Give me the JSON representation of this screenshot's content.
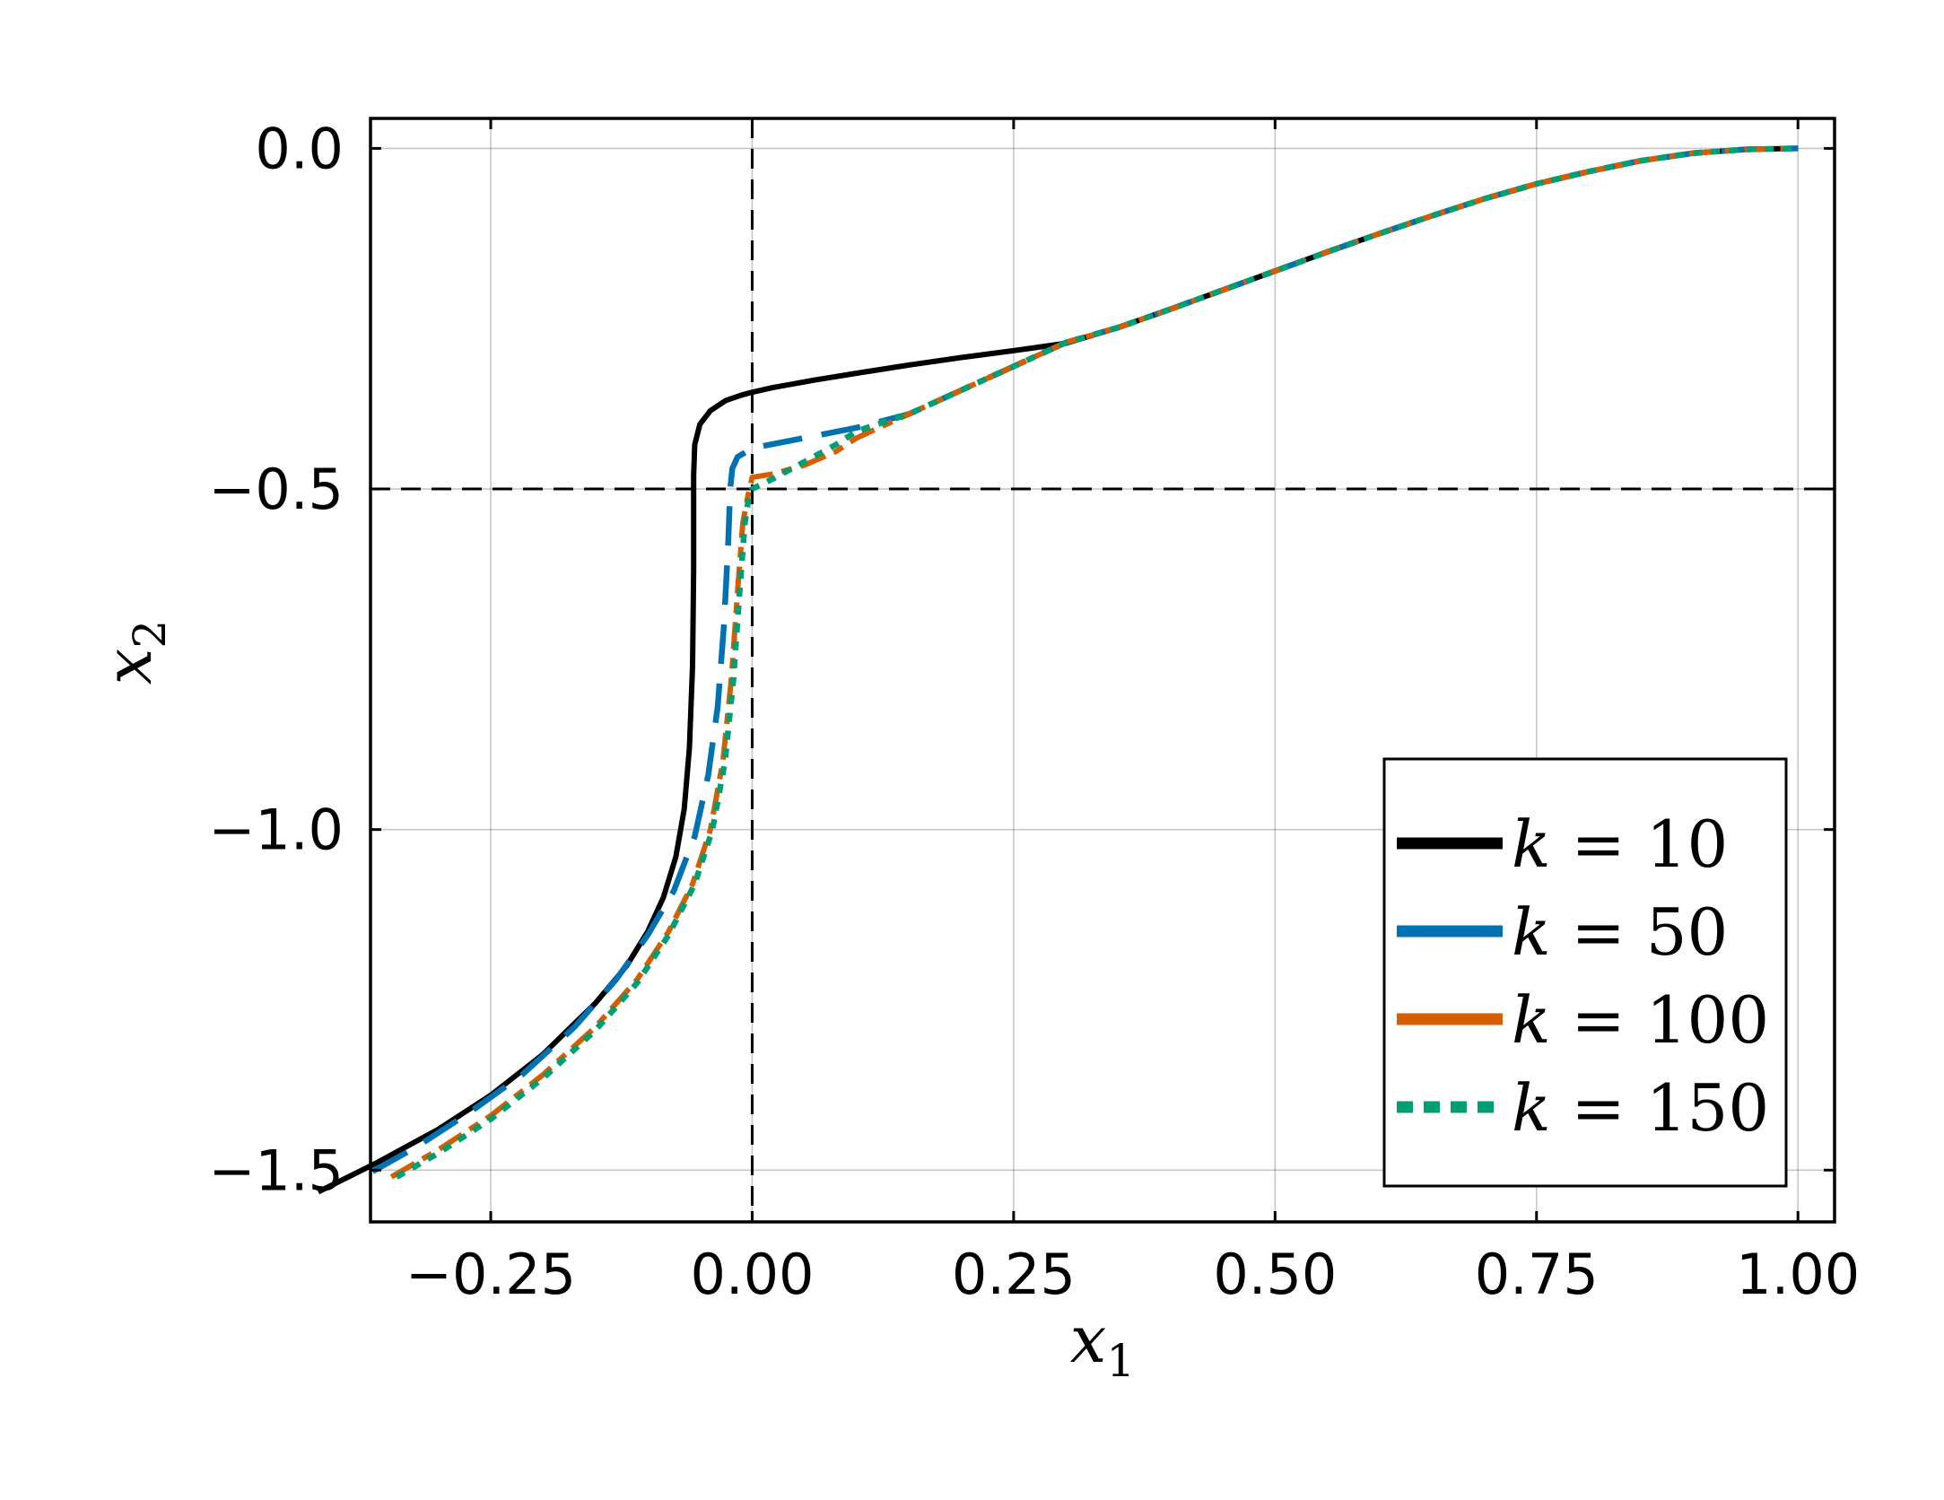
{
  "chart_data": {
    "type": "line",
    "title": "",
    "xlabel": {
      "symbol": "x",
      "subscript": "1"
    },
    "ylabel": {
      "symbol": "x",
      "subscript": "2"
    },
    "xlim": [
      -0.365,
      1.035
    ],
    "ylim": [
      -1.576,
      0.044
    ],
    "xticks": [
      -0.25,
      0.0,
      0.25,
      0.5,
      0.75,
      1.0
    ],
    "xtick_labels": [
      "−0.25",
      "0.00",
      "0.25",
      "0.50",
      "0.75",
      "1.00"
    ],
    "yticks": [
      0.0,
      -0.5,
      -1.0,
      -1.5
    ],
    "ytick_labels": [
      "0.0",
      "−0.5",
      "−1.0",
      "−1.5"
    ],
    "grid": true,
    "reference_lines": {
      "vertical_x": 0.0,
      "horizontal_y": -0.5,
      "style": "dashed"
    },
    "legend_position": "bottom-right",
    "series": [
      {
        "name": "k = 10",
        "legend_var": "k",
        "legend_value": "10",
        "color": "#000000",
        "dash": "solid",
        "points": [
          [
            -0.415,
            -1.532
          ],
          [
            -0.36,
            -1.49
          ],
          [
            -0.3,
            -1.44
          ],
          [
            -0.25,
            -1.39
          ],
          [
            -0.2,
            -1.33
          ],
          [
            -0.15,
            -1.255
          ],
          [
            -0.12,
            -1.2
          ],
          [
            -0.1,
            -1.15
          ],
          [
            -0.085,
            -1.1
          ],
          [
            -0.073,
            -1.04
          ],
          [
            -0.065,
            -0.97
          ],
          [
            -0.06,
            -0.88
          ],
          [
            -0.057,
            -0.76
          ],
          [
            -0.056,
            -0.62
          ],
          [
            -0.056,
            -0.48
          ],
          [
            -0.055,
            -0.435
          ],
          [
            -0.05,
            -0.405
          ],
          [
            -0.04,
            -0.385
          ],
          [
            -0.025,
            -0.37
          ],
          [
            -0.01,
            -0.362
          ],
          [
            0.0,
            -0.358
          ],
          [
            0.02,
            -0.351
          ],
          [
            0.06,
            -0.34
          ],
          [
            0.1,
            -0.33
          ],
          [
            0.15,
            -0.318
          ],
          [
            0.2,
            -0.307
          ],
          [
            0.25,
            -0.297
          ],
          [
            0.3,
            -0.286
          ],
          [
            0.35,
            -0.263
          ],
          [
            0.4,
            -0.236
          ],
          [
            0.45,
            -0.208
          ],
          [
            0.5,
            -0.18
          ],
          [
            0.55,
            -0.152
          ],
          [
            0.6,
            -0.125
          ],
          [
            0.65,
            -0.099
          ],
          [
            0.7,
            -0.074
          ],
          [
            0.75,
            -0.052
          ],
          [
            0.8,
            -0.034
          ],
          [
            0.85,
            -0.018
          ],
          [
            0.9,
            -0.007
          ],
          [
            0.95,
            -0.0015
          ],
          [
            1.0,
            0.0
          ]
        ]
      },
      {
        "name": "k = 50",
        "legend_var": "k",
        "legend_value": "50",
        "color": "#0072B2",
        "dash": "long-dash",
        "points": [
          [
            -0.363,
            -1.502
          ],
          [
            -0.32,
            -1.465
          ],
          [
            -0.27,
            -1.415
          ],
          [
            -0.22,
            -1.36
          ],
          [
            -0.17,
            -1.29
          ],
          [
            -0.13,
            -1.22
          ],
          [
            -0.1,
            -1.155
          ],
          [
            -0.075,
            -1.09
          ],
          [
            -0.055,
            -1.01
          ],
          [
            -0.042,
            -0.92
          ],
          [
            -0.033,
            -0.82
          ],
          [
            -0.027,
            -0.7
          ],
          [
            -0.023,
            -0.58
          ],
          [
            -0.021,
            -0.5
          ],
          [
            -0.019,
            -0.47
          ],
          [
            -0.014,
            -0.453
          ],
          [
            0.0,
            -0.44
          ],
          [
            0.05,
            -0.425
          ],
          [
            0.1,
            -0.41
          ],
          [
            0.15,
            -0.39
          ],
          [
            0.2,
            -0.355
          ],
          [
            0.25,
            -0.32
          ],
          [
            0.3,
            -0.285
          ],
          [
            0.35,
            -0.263
          ],
          [
            0.4,
            -0.236
          ],
          [
            0.45,
            -0.208
          ],
          [
            0.5,
            -0.18
          ],
          [
            0.55,
            -0.152
          ],
          [
            0.6,
            -0.125
          ],
          [
            0.65,
            -0.099
          ],
          [
            0.7,
            -0.074
          ],
          [
            0.75,
            -0.052
          ],
          [
            0.8,
            -0.034
          ],
          [
            0.85,
            -0.018
          ],
          [
            0.9,
            -0.007
          ],
          [
            0.95,
            -0.0015
          ],
          [
            1.0,
            0.0
          ]
        ]
      },
      {
        "name": "k = 100",
        "legend_var": "k",
        "legend_value": "100",
        "color": "#D55E00",
        "dash": "dash-dot",
        "points": [
          [
            -0.345,
            -1.51
          ],
          [
            -0.3,
            -1.47
          ],
          [
            -0.25,
            -1.42
          ],
          [
            -0.2,
            -1.36
          ],
          [
            -0.15,
            -1.29
          ],
          [
            -0.11,
            -1.22
          ],
          [
            -0.08,
            -1.15
          ],
          [
            -0.057,
            -1.08
          ],
          [
            -0.04,
            -1.0
          ],
          [
            -0.028,
            -0.9
          ],
          [
            -0.02,
            -0.78
          ],
          [
            -0.014,
            -0.65
          ],
          [
            -0.009,
            -0.55
          ],
          [
            -0.004,
            -0.51
          ],
          [
            0.0,
            -0.483
          ],
          [
            0.02,
            -0.478
          ],
          [
            0.05,
            -0.465
          ],
          [
            0.08,
            -0.445
          ],
          [
            0.1,
            -0.425
          ],
          [
            0.15,
            -0.39
          ],
          [
            0.2,
            -0.355
          ],
          [
            0.25,
            -0.32
          ],
          [
            0.3,
            -0.285
          ],
          [
            0.35,
            -0.263
          ],
          [
            0.4,
            -0.236
          ],
          [
            0.45,
            -0.208
          ],
          [
            0.5,
            -0.18
          ],
          [
            0.55,
            -0.152
          ],
          [
            0.6,
            -0.125
          ],
          [
            0.65,
            -0.099
          ],
          [
            0.7,
            -0.074
          ],
          [
            0.75,
            -0.052
          ],
          [
            0.8,
            -0.034
          ],
          [
            0.85,
            -0.018
          ],
          [
            0.9,
            -0.007
          ],
          [
            0.95,
            -0.0015
          ],
          [
            1.0,
            0.0
          ]
        ]
      },
      {
        "name": "k = 150",
        "legend_var": "k",
        "legend_value": "150",
        "color": "#009E73",
        "dash": "dotted",
        "points": [
          [
            -0.34,
            -1.51
          ],
          [
            -0.3,
            -1.475
          ],
          [
            -0.25,
            -1.425
          ],
          [
            -0.2,
            -1.365
          ],
          [
            -0.15,
            -1.295
          ],
          [
            -0.11,
            -1.225
          ],
          [
            -0.08,
            -1.155
          ],
          [
            -0.055,
            -1.08
          ],
          [
            -0.038,
            -1.0
          ],
          [
            -0.026,
            -0.9
          ],
          [
            -0.018,
            -0.78
          ],
          [
            -0.012,
            -0.65
          ],
          [
            -0.007,
            -0.55
          ],
          [
            -0.003,
            -0.51
          ],
          [
            0.0,
            -0.5
          ],
          [
            0.02,
            -0.485
          ],
          [
            0.05,
            -0.46
          ],
          [
            0.08,
            -0.435
          ],
          [
            0.1,
            -0.415
          ],
          [
            0.15,
            -0.39
          ],
          [
            0.2,
            -0.355
          ],
          [
            0.25,
            -0.32
          ],
          [
            0.3,
            -0.285
          ],
          [
            0.35,
            -0.263
          ],
          [
            0.4,
            -0.236
          ],
          [
            0.45,
            -0.208
          ],
          [
            0.5,
            -0.18
          ],
          [
            0.55,
            -0.152
          ],
          [
            0.6,
            -0.125
          ],
          [
            0.65,
            -0.099
          ],
          [
            0.7,
            -0.074
          ],
          [
            0.75,
            -0.052
          ],
          [
            0.8,
            -0.034
          ],
          [
            0.85,
            -0.018
          ],
          [
            0.9,
            -0.007
          ],
          [
            0.95,
            -0.0015
          ],
          [
            1.0,
            0.0
          ]
        ]
      }
    ]
  }
}
